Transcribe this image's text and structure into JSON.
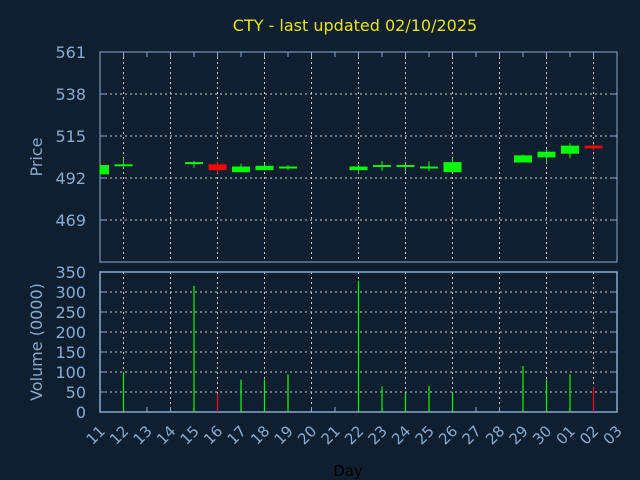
{
  "chart_data": {
    "type": "candlestick",
    "title": "CTY - last updated 02/10/2025",
    "xlabel": "Day",
    "price_panel": {
      "ylabel": "Price",
      "ylim": [
        446,
        561
      ],
      "yticks": [
        561,
        538,
        515,
        492,
        469
      ],
      "grid": true
    },
    "volume_panel": {
      "ylabel": "Volume (0000)",
      "ylim": [
        0,
        350
      ],
      "yticks": [
        350,
        300,
        250,
        200,
        150,
        100,
        50,
        0
      ],
      "grid": true
    },
    "x_tick_labels": [
      "11",
      "12",
      "13",
      "14",
      "15",
      "16",
      "17",
      "18",
      "19",
      "20",
      "21",
      "22",
      "23",
      "24",
      "25",
      "26",
      "27",
      "28",
      "29",
      "30",
      "01",
      "02",
      "03"
    ],
    "candles": [
      {
        "day": "11",
        "open": 494.0,
        "high": 499.1,
        "low": 494.0,
        "close": 499.1
      },
      {
        "day": "12",
        "open": 498.8,
        "high": 502.8,
        "low": 498.4,
        "close": 499.5
      },
      {
        "day": "15",
        "open": 500.1,
        "high": 501.4,
        "low": 497.6,
        "close": 500.7
      },
      {
        "day": "16",
        "open": 499.5,
        "high": 500.7,
        "low": 494.6,
        "close": 496.3
      },
      {
        "day": "17",
        "open": 495.2,
        "high": 499.8,
        "low": 495.2,
        "close": 498.3
      },
      {
        "day": "18",
        "open": 496.3,
        "high": 499.9,
        "low": 496.3,
        "close": 498.7
      },
      {
        "day": "19",
        "open": 497.2,
        "high": 499.1,
        "low": 496.3,
        "close": 498.3
      },
      {
        "day": "22",
        "open": 496.3,
        "high": 499.1,
        "low": 494.4,
        "close": 498.3
      },
      {
        "day": "23",
        "open": 498.4,
        "high": 501.4,
        "low": 496.0,
        "close": 499.1
      },
      {
        "day": "24",
        "open": 498.4,
        "high": 499.9,
        "low": 495.6,
        "close": 499.1
      },
      {
        "day": "25",
        "open": 497.6,
        "high": 501.2,
        "low": 496.0,
        "close": 498.3
      },
      {
        "day": "26",
        "open": 495.2,
        "high": 502.8,
        "low": 495.2,
        "close": 500.7
      },
      {
        "day": "29",
        "open": 500.5,
        "high": 504.8,
        "low": 500.5,
        "close": 504.4
      },
      {
        "day": "30",
        "open": 503.3,
        "high": 507.7,
        "low": 500.5,
        "close": 506.4
      },
      {
        "day": "01",
        "open": 505.3,
        "high": 511.0,
        "low": 502.8,
        "close": 509.7
      },
      {
        "day": "02",
        "open": 509.7,
        "high": 510.5,
        "low": 507.3,
        "close": 508.2
      }
    ],
    "volume": [
      {
        "day": "12",
        "value": 100
      },
      {
        "day": "15",
        "value": 315
      },
      {
        "day": "16",
        "value": 46
      },
      {
        "day": "17",
        "value": 81
      },
      {
        "day": "18",
        "value": 81
      },
      {
        "day": "19",
        "value": 94
      },
      {
        "day": "22",
        "value": 327
      },
      {
        "day": "23",
        "value": 64
      },
      {
        "day": "24",
        "value": 47
      },
      {
        "day": "25",
        "value": 65
      },
      {
        "day": "26",
        "value": 49
      },
      {
        "day": "29",
        "value": 115
      },
      {
        "day": "30",
        "value": 81
      },
      {
        "day": "01",
        "value": 94
      },
      {
        "day": "02",
        "value": 62
      }
    ],
    "colors": {
      "background": "#0f1f30",
      "up": "#00ff00",
      "down": "#ff0000",
      "title": "#e8e800",
      "axis": "#8aaad0",
      "grid": "#c8c8c8",
      "xlabel": "#000000"
    }
  }
}
